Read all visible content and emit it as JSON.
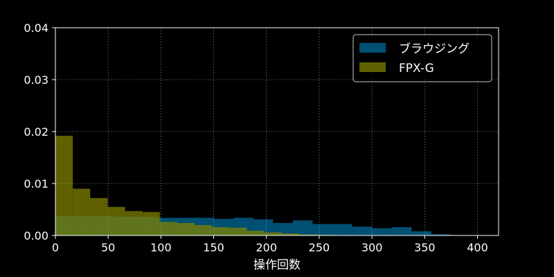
{
  "chart_data": {
    "type": "bar",
    "subtype": "overlapping-histogram",
    "title": "",
    "xlabel": "操作回数",
    "ylabel": "",
    "xlim": [
      0,
      420
    ],
    "ylim": [
      0,
      0.04
    ],
    "x_ticks": [
      0,
      50,
      100,
      150,
      200,
      250,
      300,
      350,
      400
    ],
    "x_tick_labels": [
      "0",
      "50",
      "100",
      "150",
      "200",
      "250",
      "300",
      "350",
      "400"
    ],
    "y_ticks": [
      0,
      0.01,
      0.02,
      0.03,
      0.04
    ],
    "y_tick_labels": [
      "0.00",
      "0.01",
      "0.02",
      "0.03",
      "0.04"
    ],
    "grid": true,
    "legend_position": "top-right",
    "series": [
      {
        "name": "ブラウジング",
        "color": "#006b9a",
        "bins": [
          {
            "x0": 0,
            "x1": 18.75,
            "value": 0.0037
          },
          {
            "x0": 18.75,
            "x1": 37.5,
            "value": 0.0037
          },
          {
            "x0": 37.5,
            "x1": 56.25,
            "value": 0.0037
          },
          {
            "x0": 56.25,
            "x1": 75,
            "value": 0.0036
          },
          {
            "x0": 75,
            "x1": 93.75,
            "value": 0.0036
          },
          {
            "x0": 93.75,
            "x1": 112.5,
            "value": 0.0034
          },
          {
            "x0": 112.5,
            "x1": 131.25,
            "value": 0.0034
          },
          {
            "x0": 131.25,
            "x1": 150,
            "value": 0.0034
          },
          {
            "x0": 150,
            "x1": 168.75,
            "value": 0.0032
          },
          {
            "x0": 168.75,
            "x1": 187.5,
            "value": 0.0034
          },
          {
            "x0": 187.5,
            "x1": 206.25,
            "value": 0.0031
          },
          {
            "x0": 206.25,
            "x1": 225,
            "value": 0.0024
          },
          {
            "x0": 225,
            "x1": 243.75,
            "value": 0.0029
          },
          {
            "x0": 243.75,
            "x1": 262.5,
            "value": 0.0022
          },
          {
            "x0": 262.5,
            "x1": 281.25,
            "value": 0.0022
          },
          {
            "x0": 281.25,
            "x1": 300,
            "value": 0.0017
          },
          {
            "x0": 300,
            "x1": 318.75,
            "value": 0.0014
          },
          {
            "x0": 318.75,
            "x1": 337.5,
            "value": 0.0016
          },
          {
            "x0": 337.5,
            "x1": 356.25,
            "value": 0.0008
          },
          {
            "x0": 356.25,
            "x1": 375,
            "value": 0.0002
          }
        ]
      },
      {
        "name": "FPX-G",
        "color": "#808000",
        "bins": [
          {
            "x0": 0,
            "x1": 16.5,
            "value": 0.0192
          },
          {
            "x0": 16.5,
            "x1": 33,
            "value": 0.009
          },
          {
            "x0": 33,
            "x1": 49.5,
            "value": 0.0072
          },
          {
            "x0": 49.5,
            "x1": 66,
            "value": 0.0055
          },
          {
            "x0": 66,
            "x1": 82.5,
            "value": 0.0047
          },
          {
            "x0": 82.5,
            "x1": 99,
            "value": 0.0045
          },
          {
            "x0": 99,
            "x1": 115.5,
            "value": 0.0026
          },
          {
            "x0": 115.5,
            "x1": 132,
            "value": 0.0024
          },
          {
            "x0": 132,
            "x1": 148.5,
            "value": 0.002
          },
          {
            "x0": 148.5,
            "x1": 165,
            "value": 0.0016
          },
          {
            "x0": 165,
            "x1": 181.5,
            "value": 0.0015
          },
          {
            "x0": 181.5,
            "x1": 198,
            "value": 0.0009
          },
          {
            "x0": 198,
            "x1": 214.5,
            "value": 0.0006
          },
          {
            "x0": 214.5,
            "x1": 231,
            "value": 0.0004
          },
          {
            "x0": 231,
            "x1": 247.5,
            "value": 0.0002
          },
          {
            "x0": 247.5,
            "x1": 264,
            "value": 0.0001
          }
        ]
      }
    ]
  }
}
